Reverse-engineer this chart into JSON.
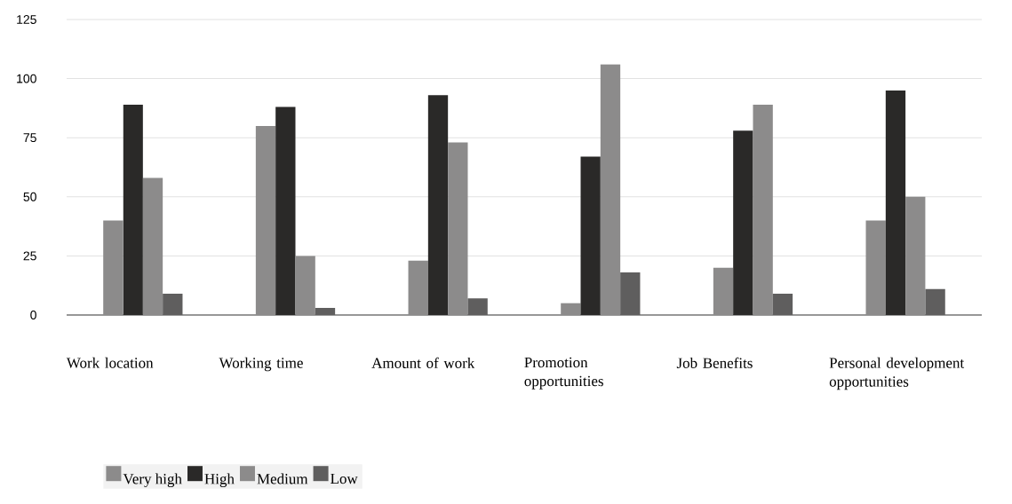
{
  "chart_data": {
    "type": "bar",
    "categories": [
      "Work location",
      "Working time",
      "Amount of work",
      "Promotion opportunities",
      "Job Benefits",
      "Personal development opportunities"
    ],
    "series": [
      {
        "name": "Very high",
        "color": "#8c8b8b",
        "values": [
          40,
          80,
          23,
          5,
          20,
          40
        ]
      },
      {
        "name": "High",
        "color": "#2a2928",
        "values": [
          89,
          88,
          93,
          67,
          78,
          95
        ]
      },
      {
        "name": "Medium",
        "color": "#8c8b8b",
        "values": [
          58,
          25,
          73,
          106,
          89,
          50
        ]
      },
      {
        "name": "Low",
        "color": "#5f5e5e",
        "values": [
          9,
          3,
          7,
          18,
          9,
          11
        ]
      }
    ],
    "ylim": [
      0,
      125
    ],
    "yticks": [
      0,
      25,
      50,
      75,
      100,
      125
    ],
    "grid": "y",
    "legend": "bottom"
  }
}
